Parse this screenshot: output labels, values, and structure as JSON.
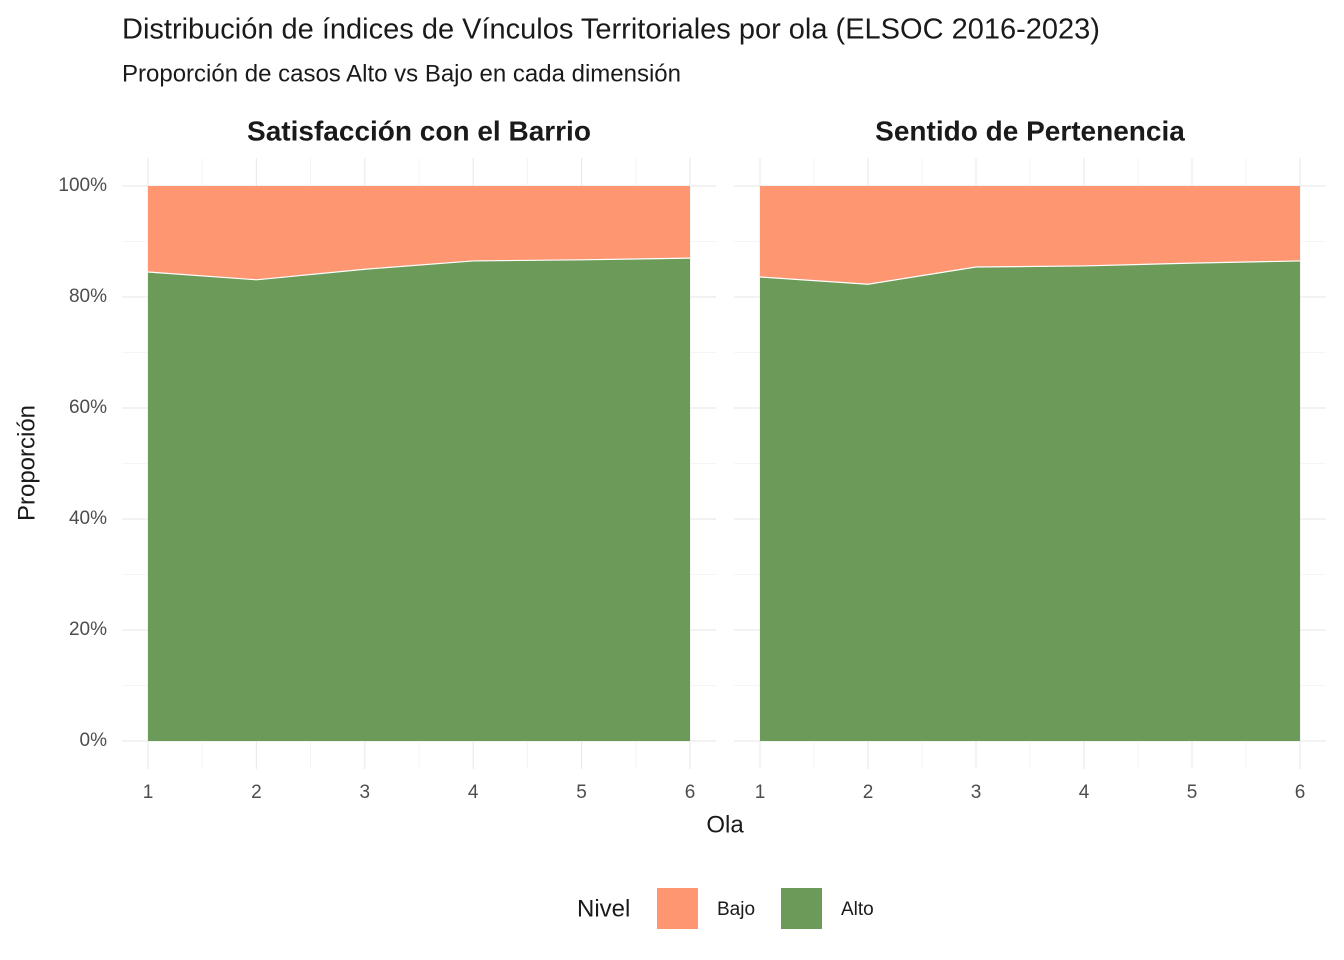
{
  "chart_data": {
    "type": "area",
    "title": "Distribución de índices de Vínculos Territoriales por ola (ELSOC 2016-2023)",
    "subtitle": "Proporción de casos Alto vs Bajo en cada dimensión",
    "xlabel": "Ola",
    "ylabel": "Proporción",
    "legend_title": "Nivel",
    "x": [
      1,
      2,
      3,
      4,
      5,
      6
    ],
    "xlim": [
      1,
      6
    ],
    "xticks": [
      1,
      2,
      3,
      4,
      5,
      6
    ],
    "ylim": [
      0,
      100
    ],
    "yticks": [
      {
        "value": 0,
        "label": "0%"
      },
      {
        "value": 20,
        "label": "20%"
      },
      {
        "value": 40,
        "label": "40%"
      },
      {
        "value": 60,
        "label": "60%"
      },
      {
        "value": 80,
        "label": "80%"
      },
      {
        "value": 100,
        "label": "100%"
      }
    ],
    "grid": true,
    "legend": "bottom",
    "panels": [
      {
        "title": "Satisfacción con el Barrio",
        "series": [
          {
            "name": "Alto",
            "color": "#6b9a59",
            "values": [
              84.5,
              83.1,
              85.0,
              86.5,
              86.7,
              87.0
            ]
          },
          {
            "name": "Bajo",
            "color": "#fe9672",
            "values": [
              15.5,
              16.9,
              15.0,
              13.5,
              13.3,
              13.0
            ]
          }
        ]
      },
      {
        "title": "Sentido de Pertenencia",
        "series": [
          {
            "name": "Alto",
            "color": "#6b9a59",
            "values": [
              83.6,
              82.3,
              85.4,
              85.6,
              86.1,
              86.5
            ]
          },
          {
            "name": "Bajo",
            "color": "#fe9672",
            "values": [
              16.4,
              17.7,
              14.6,
              14.4,
              13.9,
              13.5
            ]
          }
        ]
      }
    ]
  }
}
